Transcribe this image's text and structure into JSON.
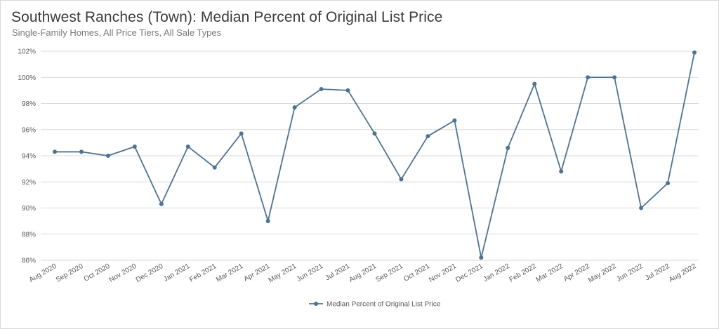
{
  "title": "Southwest Ranches (Town): Median Percent of Original List Price",
  "subtitle": "Single-Family Homes, All Price Tiers, All Sale Types",
  "colors": {
    "line": "#4e7392",
    "grid": "#d9d9d9",
    "text": "#595959"
  },
  "chart_data": {
    "type": "line",
    "categories": [
      "Aug 2020",
      "Sep 2020",
      "Oct 2020",
      "Nov 2020",
      "Dec 2020",
      "Jan 2021",
      "Feb 2021",
      "Mar 2021",
      "Apr 2021",
      "May 2021",
      "Jun 2021",
      "Jul 2021",
      "Aug 2021",
      "Sep 2021",
      "Oct 2021",
      "Nov 2021",
      "Dec 2021",
      "Jan 2022",
      "Feb 2022",
      "Mar 2022",
      "Apr 2022",
      "May 2022",
      "Jun 2022",
      "Jul 2022",
      "Aug 2022"
    ],
    "series": [
      {
        "name": "Median Percent of Original List Price",
        "values": [
          94.3,
          94.3,
          94.0,
          94.7,
          90.3,
          94.7,
          93.1,
          95.7,
          89.0,
          97.7,
          99.1,
          99.0,
          95.7,
          92.2,
          95.5,
          96.7,
          86.2,
          94.6,
          99.5,
          92.8,
          100.0,
          100.0,
          90.0,
          91.9,
          101.9
        ]
      }
    ],
    "ylim": [
      86,
      102
    ],
    "yticks": [
      86,
      88,
      90,
      92,
      94,
      96,
      98,
      100,
      102
    ],
    "ytick_labels": [
      "86%",
      "88%",
      "90%",
      "92%",
      "94%",
      "96%",
      "98%",
      "100%",
      "102%"
    ],
    "grid": true,
    "legend_position": "bottom-center"
  }
}
